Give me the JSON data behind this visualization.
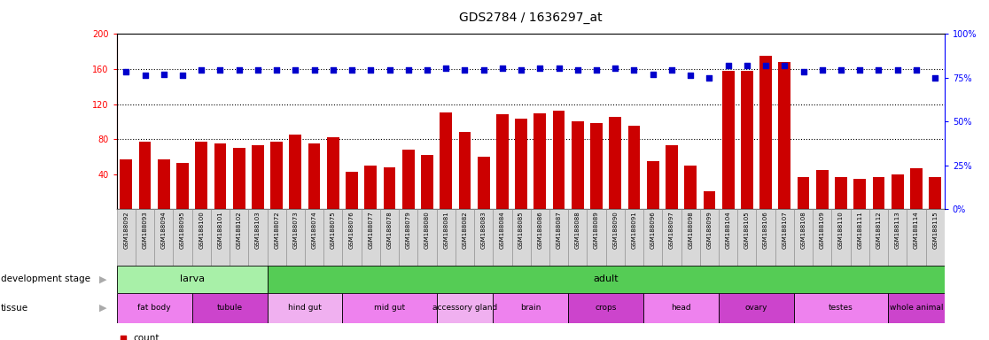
{
  "title": "GDS2784 / 1636297_at",
  "samples": [
    "GSM188092",
    "GSM188093",
    "GSM188094",
    "GSM188095",
    "GSM188100",
    "GSM188101",
    "GSM188102",
    "GSM188103",
    "GSM188072",
    "GSM188073",
    "GSM188074",
    "GSM188075",
    "GSM188076",
    "GSM188077",
    "GSM188078",
    "GSM188079",
    "GSM188080",
    "GSM188081",
    "GSM188082",
    "GSM188083",
    "GSM188084",
    "GSM188085",
    "GSM188086",
    "GSM188087",
    "GSM188088",
    "GSM188089",
    "GSM188090",
    "GSM188091",
    "GSM188096",
    "GSM188097",
    "GSM188098",
    "GSM188099",
    "GSM188104",
    "GSM188105",
    "GSM188106",
    "GSM188107",
    "GSM188108",
    "GSM188109",
    "GSM188110",
    "GSM188111",
    "GSM188112",
    "GSM188113",
    "GSM188114",
    "GSM188115"
  ],
  "counts": [
    57,
    77,
    57,
    53,
    77,
    75,
    70,
    73,
    77,
    85,
    75,
    82,
    43,
    50,
    48,
    68,
    62,
    110,
    88,
    60,
    108,
    103,
    109,
    112,
    100,
    98,
    105,
    95,
    55,
    73,
    50,
    20,
    158,
    158,
    175,
    168,
    37,
    45,
    37,
    35,
    37,
    40,
    47,
    37
  ],
  "percentile_ranks": [
    157,
    153,
    154,
    153,
    159,
    159,
    159,
    159,
    159,
    159,
    159,
    159,
    159,
    159,
    159,
    159,
    159,
    161,
    159,
    159,
    161,
    159,
    161,
    161,
    159,
    159,
    161,
    159,
    154,
    159,
    153,
    150,
    164,
    164,
    164,
    164,
    157,
    159,
    159,
    159,
    159,
    159,
    159,
    150
  ],
  "dev_stages": [
    {
      "label": "larva",
      "start": 0,
      "end": 8,
      "color": "#a8f0a8"
    },
    {
      "label": "adult",
      "start": 8,
      "end": 44,
      "color": "#55cc55"
    }
  ],
  "tissues": [
    {
      "label": "fat body",
      "start": 0,
      "end": 4,
      "color": "#ee82ee"
    },
    {
      "label": "tubule",
      "start": 4,
      "end": 8,
      "color": "#cc44cc"
    },
    {
      "label": "hind gut",
      "start": 8,
      "end": 12,
      "color": "#f0b0f0"
    },
    {
      "label": "mid gut",
      "start": 12,
      "end": 17,
      "color": "#ee82ee"
    },
    {
      "label": "accessory gland",
      "start": 17,
      "end": 20,
      "color": "#f0b0f0"
    },
    {
      "label": "brain",
      "start": 20,
      "end": 24,
      "color": "#ee82ee"
    },
    {
      "label": "crops",
      "start": 24,
      "end": 28,
      "color": "#cc44cc"
    },
    {
      "label": "head",
      "start": 28,
      "end": 32,
      "color": "#ee82ee"
    },
    {
      "label": "ovary",
      "start": 32,
      "end": 36,
      "color": "#cc44cc"
    },
    {
      "label": "testes",
      "start": 36,
      "end": 41,
      "color": "#ee82ee"
    },
    {
      "label": "whole animal",
      "start": 41,
      "end": 44,
      "color": "#cc44cc"
    }
  ],
  "ylim_left": [
    0,
    200
  ],
  "ylim_right": [
    0,
    100
  ],
  "yticks_left": [
    40,
    80,
    120,
    160,
    200
  ],
  "yticks_right": [
    0,
    25,
    50,
    75,
    100
  ],
  "bar_color": "#cc0000",
  "dot_color": "#0000cc",
  "background_color": "#ffffff",
  "baseline": 40,
  "gridlines": [
    80,
    120,
    160
  ]
}
